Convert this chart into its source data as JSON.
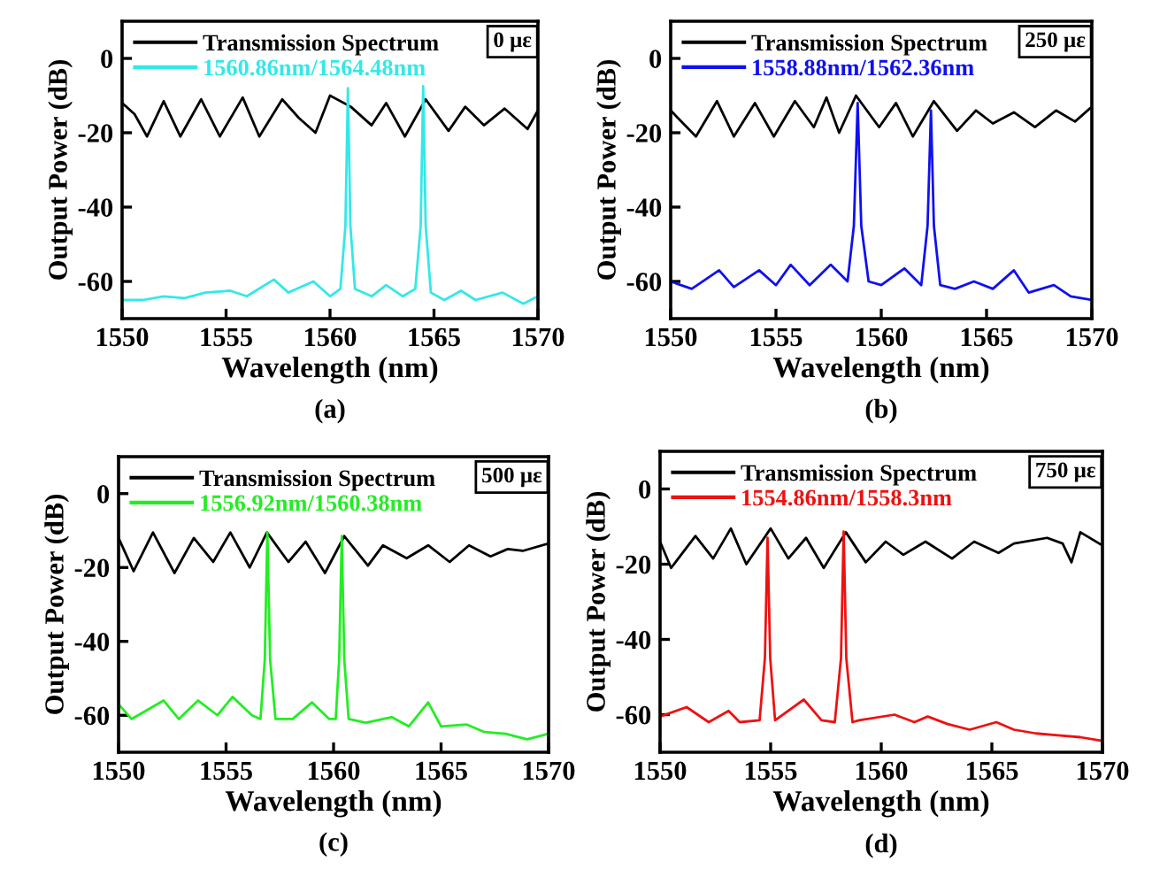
{
  "chart_data": [
    {
      "type": "line",
      "xlabel": "Wavelength (nm)",
      "ylabel": "Output Power (dB)",
      "xlim": [
        1550,
        1570
      ],
      "xticks": [
        1550,
        1555,
        1560,
        1565,
        1570
      ],
      "ylim": [
        -70,
        10
      ],
      "yticks": [
        -60,
        -40,
        -20,
        0
      ],
      "legend": "top left",
      "grid": false,
      "annotations": [
        "0 με",
        "(a)"
      ],
      "series": [
        {
          "name": "Transmission Spectrum",
          "color": "#000000",
          "x": [
            1550,
            1550.6,
            1551.2,
            1552.0,
            1552.8,
            1553.8,
            1554.7,
            1555.8,
            1556.6,
            1557.7,
            1558.5,
            1559.3,
            1560.0,
            1561.0,
            1562.0,
            1562.7,
            1563.6,
            1564.6,
            1565.7,
            1566.5,
            1567.4,
            1568.4,
            1569.5,
            1570
          ],
          "values": [
            -12,
            -15,
            -21,
            -11.5,
            -21,
            -11,
            -21,
            -10.5,
            -21,
            -11,
            -16,
            -20,
            -10,
            -13,
            -18,
            -12,
            -21,
            -11,
            -19.5,
            -13,
            -18,
            -13.5,
            -19,
            -14
          ]
        },
        {
          "name": "1560.86nm/1564.48nm",
          "color": "#33e8e8",
          "x": [
            1550,
            1551,
            1552,
            1553,
            1554,
            1555.2,
            1556,
            1557.3,
            1558,
            1559.2,
            1560,
            1560.5,
            1560.74,
            1560.86,
            1560.98,
            1561.2,
            1562,
            1562.7,
            1563.5,
            1564.1,
            1564.36,
            1564.48,
            1564.6,
            1564.85,
            1565.5,
            1566.3,
            1567,
            1568.3,
            1569.3,
            1570
          ],
          "values": [
            -65,
            -65,
            -64,
            -64.5,
            -63,
            -62.5,
            -64,
            -59.5,
            -63,
            -60,
            -64,
            -62,
            -45,
            -8,
            -45,
            -62,
            -64,
            -61,
            -64,
            -62,
            -45,
            -7.5,
            -45,
            -63,
            -65,
            -62.5,
            -65,
            -63,
            -66,
            -64
          ]
        }
      ]
    },
    {
      "type": "line",
      "xlabel": "Wavelength (nm)",
      "ylabel": "Output Power (dB)",
      "xlim": [
        1550,
        1570
      ],
      "xticks": [
        1550,
        1555,
        1560,
        1565,
        1570
      ],
      "ylim": [
        -70,
        10
      ],
      "yticks": [
        -60,
        -40,
        -20,
        0
      ],
      "legend": "top left",
      "grid": false,
      "annotations": [
        "250 με",
        "(b)"
      ],
      "series": [
        {
          "name": "Transmission Spectrum",
          "color": "#000000",
          "x": [
            1550,
            1551.2,
            1552.2,
            1553.0,
            1554.0,
            1554.9,
            1555.9,
            1556.8,
            1557.4,
            1558.0,
            1558.8,
            1559.9,
            1560.7,
            1561.5,
            1562.5,
            1563.6,
            1564.5,
            1565.3,
            1566.3,
            1567.3,
            1568.3,
            1569.2,
            1570
          ],
          "values": [
            -14,
            -21,
            -11.5,
            -21,
            -12,
            -21,
            -11.5,
            -18.5,
            -10.5,
            -20,
            -10,
            -18.5,
            -12,
            -21,
            -11.5,
            -19.5,
            -14,
            -17.5,
            -14.5,
            -18.5,
            -14,
            -17,
            -13
          ]
        },
        {
          "name": "1558.88nm/1562.36nm",
          "color": "#1010f0",
          "x": [
            1550,
            1551,
            1552.3,
            1553,
            1554.2,
            1555,
            1555.7,
            1556.6,
            1557.6,
            1558.4,
            1558.7,
            1558.88,
            1559.05,
            1559.4,
            1560,
            1561.1,
            1561.9,
            1562.2,
            1562.36,
            1562.5,
            1562.8,
            1563.5,
            1564.4,
            1565.3,
            1566.3,
            1567,
            1568.2,
            1569,
            1570
          ],
          "values": [
            -60,
            -62,
            -57,
            -61.5,
            -57,
            -61,
            -55.5,
            -61,
            -55.5,
            -60,
            -45,
            -12,
            -45,
            -60,
            -61,
            -56.5,
            -61,
            -45,
            -14,
            -45,
            -61,
            -62,
            -60,
            -62,
            -57,
            -63,
            -61,
            -64,
            -65
          ]
        }
      ]
    },
    {
      "type": "line",
      "xlabel": "Wavelength (nm)",
      "ylabel": "Output Power (dB)",
      "xlim": [
        1550,
        1570
      ],
      "xticks": [
        1550,
        1555,
        1560,
        1565,
        1570
      ],
      "ylim": [
        -70,
        10
      ],
      "yticks": [
        -60,
        -40,
        -20,
        0
      ],
      "legend": "top left",
      "grid": false,
      "annotations": [
        "500 με",
        "(c)"
      ],
      "series": [
        {
          "name": "Transmission Spectrum",
          "color": "#000000",
          "x": [
            1550,
            1550.7,
            1551.6,
            1552.6,
            1553.5,
            1554.4,
            1555.2,
            1556.1,
            1556.9,
            1557.9,
            1558.7,
            1559.6,
            1560.5,
            1561.6,
            1562.3,
            1563.4,
            1564.4,
            1565.4,
            1566.3,
            1567.3,
            1568.1,
            1568.8,
            1570
          ],
          "values": [
            -12,
            -21,
            -10.5,
            -21.5,
            -12,
            -18.5,
            -10.5,
            -20,
            -10.5,
            -18.5,
            -13,
            -21.5,
            -11.5,
            -19.5,
            -14,
            -17.5,
            -14,
            -18.5,
            -14,
            -17,
            -15,
            -15.5,
            -13.5
          ]
        },
        {
          "name": "1556.92nm/1560.38nm",
          "color": "#22ee22",
          "x": [
            1550,
            1550.6,
            1552.1,
            1552.8,
            1553.7,
            1554.6,
            1555.3,
            1556.2,
            1556.6,
            1556.8,
            1556.92,
            1557.05,
            1557.3,
            1558.1,
            1559.0,
            1559.8,
            1560.1,
            1560.26,
            1560.38,
            1560.5,
            1560.7,
            1561.5,
            1562.7,
            1563.5,
            1564.4,
            1565,
            1566.2,
            1567,
            1568,
            1569,
            1570
          ],
          "values": [
            -57,
            -61,
            -56,
            -61,
            -56,
            -60,
            -55,
            -60,
            -61,
            -45,
            -10.5,
            -45,
            -61,
            -61,
            -56.5,
            -61,
            -61,
            -45,
            -11.5,
            -45,
            -61,
            -62,
            -60.5,
            -63,
            -56.5,
            -63,
            -62.5,
            -64.5,
            -65,
            -66.5,
            -65
          ]
        }
      ]
    },
    {
      "type": "line",
      "xlabel": "Wavelength (nm)",
      "ylabel": "Output Power (dB)",
      "xlim": [
        1550,
        1570
      ],
      "xticks": [
        1550,
        1555,
        1560,
        1565,
        1570
      ],
      "ylim": [
        -70,
        10
      ],
      "yticks": [
        -60,
        -40,
        -20,
        0
      ],
      "legend": "top left",
      "grid": false,
      "annotations": [
        "750 με",
        "(d)"
      ],
      "series": [
        {
          "name": "Transmission Spectrum",
          "color": "#000000",
          "x": [
            1550,
            1550.5,
            1551.6,
            1552.4,
            1553.2,
            1553.9,
            1555.0,
            1555.8,
            1556.6,
            1557.4,
            1558.4,
            1559.3,
            1560.2,
            1561.0,
            1562.0,
            1563.2,
            1564.2,
            1565.3,
            1566.0,
            1567.5,
            1568.2,
            1568.6,
            1569.0,
            1570
          ],
          "values": [
            -14,
            -21,
            -12.5,
            -18.5,
            -10.5,
            -20,
            -10.5,
            -18.5,
            -13,
            -21,
            -11.5,
            -19.5,
            -14,
            -17.5,
            -14,
            -18.5,
            -14,
            -17,
            -14.5,
            -13,
            -14.5,
            -19.5,
            -11.5,
            -15
          ]
        },
        {
          "name": "1554.86nm/1558.3nm",
          "color": "#ee1111",
          "x": [
            1550,
            1551.2,
            1552.2,
            1553.1,
            1553.6,
            1554.5,
            1554.74,
            1554.86,
            1554.98,
            1555.2,
            1556.5,
            1557.3,
            1557.9,
            1558.18,
            1558.3,
            1558.42,
            1558.7,
            1559,
            1560.6,
            1561.5,
            1562.1,
            1563,
            1564,
            1565.2,
            1566,
            1567,
            1568,
            1569,
            1570
          ],
          "values": [
            -60.5,
            -58,
            -62,
            -59,
            -62,
            -61.5,
            -45,
            -13,
            -45,
            -61.5,
            -56,
            -61.5,
            -62,
            -45,
            -11.3,
            -45,
            -62,
            -61.5,
            -60,
            -62,
            -60.5,
            -62.5,
            -64,
            -62,
            -64,
            -65,
            -65.5,
            -66,
            -67
          ]
        }
      ]
    }
  ]
}
